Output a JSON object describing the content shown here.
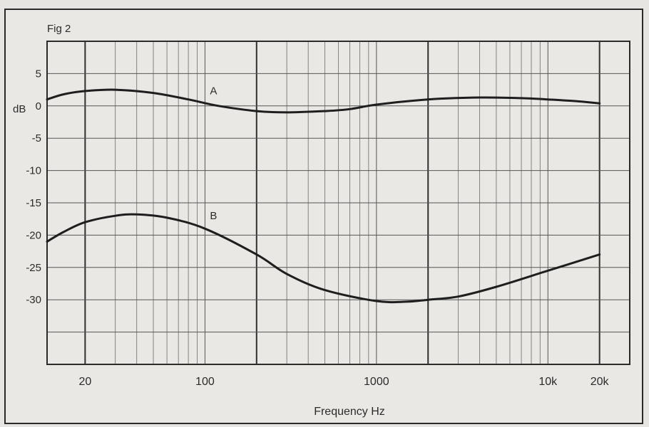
{
  "figure_label": "Fig 2",
  "chart_data": {
    "type": "line",
    "xscale": "log",
    "xlabel": "Frequency Hz",
    "ylabel": "dB",
    "xlim": [
      12,
      30000
    ],
    "ylim": [
      -40,
      10
    ],
    "x_ticks": [
      {
        "value": 20,
        "label": "20"
      },
      {
        "value": 100,
        "label": "100"
      },
      {
        "value": 1000,
        "label": "1000"
      },
      {
        "value": 10000,
        "label": "10k"
      },
      {
        "value": 20000,
        "label": "20k"
      }
    ],
    "y_ticks": [
      {
        "value": 5,
        "label": "5"
      },
      {
        "value": 0,
        "label": "0"
      },
      {
        "value": -5,
        "label": "-5"
      },
      {
        "value": -10,
        "label": "-10"
      },
      {
        "value": -15,
        "label": "-15"
      },
      {
        "value": -20,
        "label": "-20"
      },
      {
        "value": -25,
        "label": "-25"
      },
      {
        "value": -30,
        "label": "-30"
      }
    ],
    "grid": true,
    "series": [
      {
        "name": "A",
        "x": [
          12,
          15,
          20,
          30,
          50,
          80,
          120,
          200,
          300,
          500,
          700,
          1000,
          2000,
          4000,
          7000,
          10000,
          15000,
          20000
        ],
        "y": [
          1.0,
          1.8,
          2.3,
          2.5,
          2.0,
          1.0,
          0.0,
          -0.8,
          -1.0,
          -0.8,
          -0.5,
          0.2,
          1.0,
          1.3,
          1.2,
          1.0,
          0.7,
          0.4
        ]
      },
      {
        "name": "B",
        "x": [
          12,
          15,
          20,
          30,
          40,
          60,
          100,
          200,
          300,
          500,
          1000,
          1500,
          2000,
          3000,
          5000,
          10000,
          20000
        ],
        "y": [
          -21.0,
          -19.5,
          -18.0,
          -17.0,
          -16.8,
          -17.3,
          -19.0,
          -23.0,
          -26.0,
          -28.5,
          -30.2,
          -30.3,
          -30.0,
          -29.5,
          -28.0,
          -25.5,
          -23.0
        ]
      }
    ]
  }
}
